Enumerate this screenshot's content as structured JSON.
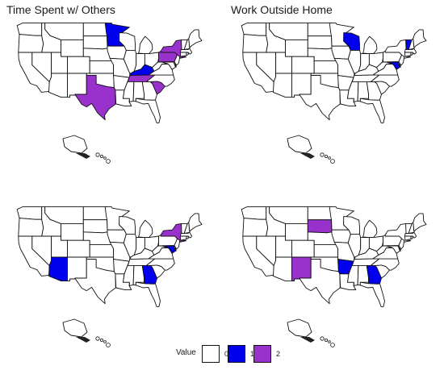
{
  "palette": {
    "0": "#ffffff",
    "1": "#0000ee",
    "2": "#9932cc"
  },
  "maps": [
    {
      "title": "Time Spent w/ Others",
      "highlights": [
        {
          "state": "MN",
          "value": 1
        },
        {
          "state": "KY",
          "value": 1
        },
        {
          "state": "TX",
          "value": 2
        },
        {
          "state": "NY",
          "value": 2
        },
        {
          "state": "PA",
          "value": 2
        },
        {
          "state": "TN",
          "value": 2
        },
        {
          "state": "SC",
          "value": 2
        }
      ]
    },
    {
      "title": "Work Outside Home",
      "highlights": [
        {
          "state": "WI",
          "value": 1
        },
        {
          "state": "VT",
          "value": 1
        },
        {
          "state": "MD",
          "value": 1
        }
      ]
    },
    {
      "title": "",
      "highlights": [
        {
          "state": "AZ",
          "value": 1
        },
        {
          "state": "GA",
          "value": 1
        },
        {
          "state": "MD",
          "value": 1
        },
        {
          "state": "NY",
          "value": 2
        }
      ]
    },
    {
      "title": "",
      "highlights": [
        {
          "state": "AR",
          "value": 1
        },
        {
          "state": "GA",
          "value": 1
        },
        {
          "state": "SD",
          "value": 2
        },
        {
          "state": "NM",
          "value": 2
        }
      ]
    }
  ],
  "legend": {
    "title": "Value",
    "items": [
      {
        "label": "0",
        "value": 0
      },
      {
        "label": "1",
        "value": 1
      },
      {
        "label": "2",
        "value": 2
      }
    ]
  }
}
